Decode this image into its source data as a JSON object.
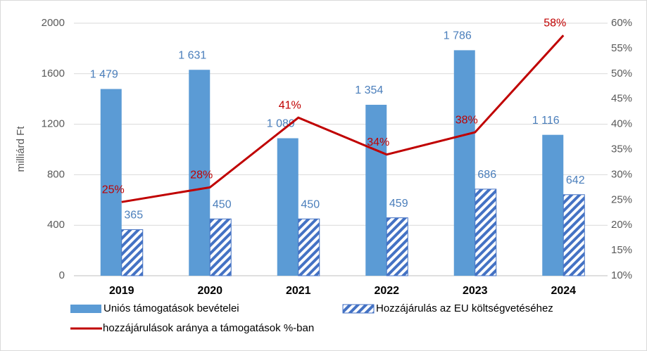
{
  "chart_data": {
    "type": "bar",
    "y_label": "milliárd Ft",
    "categories": [
      "2019",
      "2020",
      "2021",
      "2022",
      "2023",
      "2024"
    ],
    "series": [
      {
        "name": "Uniós támogatások bevételei",
        "color": "#5b9bd5",
        "type": "bar",
        "values": [
          1479,
          1631,
          1089,
          1354,
          1786,
          1116
        ],
        "value_labels": [
          "1 479",
          "1 631",
          "1 089",
          "1 354",
          "1 786",
          "1 116"
        ]
      },
      {
        "name": "Hozzájárulás az EU költségvetéséhez",
        "color": "#4472c4",
        "type": "bar",
        "pattern": "hatched",
        "values": [
          365,
          450,
          450,
          459,
          686,
          642
        ]
      },
      {
        "name": "hozzájárulások aránya a támogatások %-ban",
        "color": "#c00000",
        "type": "line",
        "axis": "y2",
        "values": [
          24.6,
          27.5,
          41.3,
          34.0,
          38.4,
          57.6
        ],
        "value_labels": [
          "25%",
          "28%",
          "41%",
          "34%",
          "38%",
          "58%"
        ]
      }
    ],
    "ylim": [
      0,
      2000
    ],
    "yticks": [
      0,
      400,
      800,
      1200,
      1600,
      2000
    ],
    "y2lim": [
      10,
      60
    ],
    "y2ticks": [
      {
        "value": 10,
        "label": "10%"
      },
      {
        "value": 15,
        "label": "15%"
      },
      {
        "value": 20,
        "label": "20%"
      },
      {
        "value": 25,
        "label": "25%"
      },
      {
        "value": 30,
        "label": "30%"
      },
      {
        "value": 35,
        "label": "35%"
      },
      {
        "value": 40,
        "label": "40%"
      },
      {
        "value": 45,
        "label": "45%"
      },
      {
        "value": 50,
        "label": "50%"
      },
      {
        "value": 55,
        "label": "55%"
      },
      {
        "value": 60,
        "label": "60%"
      }
    ],
    "grid": true,
    "legend": "bottom"
  }
}
